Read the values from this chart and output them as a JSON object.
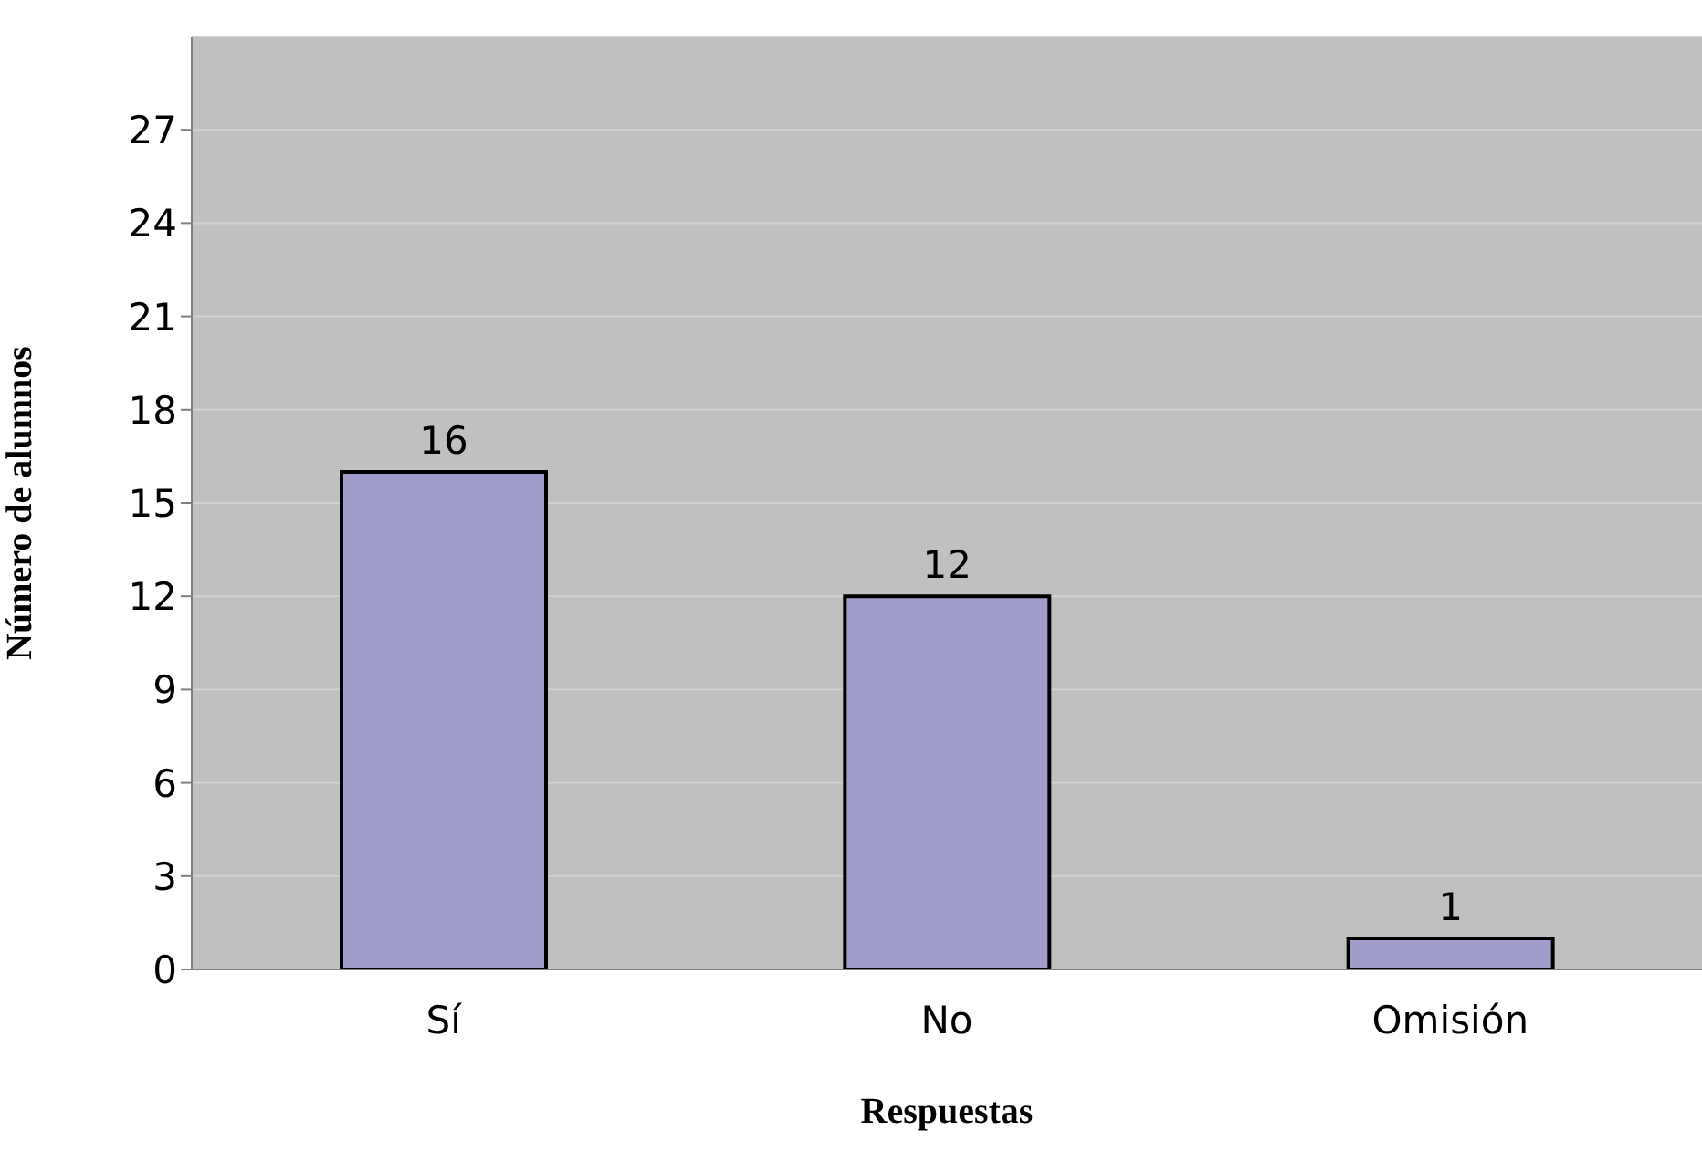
{
  "chart_data": {
    "type": "bar",
    "xlabel": "Respuestas",
    "ylabel": "Número de alumnos",
    "categories": [
      "Sí",
      "No",
      "Omisión"
    ],
    "values": [
      16,
      12,
      1
    ],
    "color": "#a09ccc",
    "ylim": [
      0,
      30
    ],
    "yticks": [
      0,
      3,
      6,
      9,
      12,
      15,
      18,
      21,
      24,
      27
    ],
    "grid": "y",
    "data_labels": true
  }
}
